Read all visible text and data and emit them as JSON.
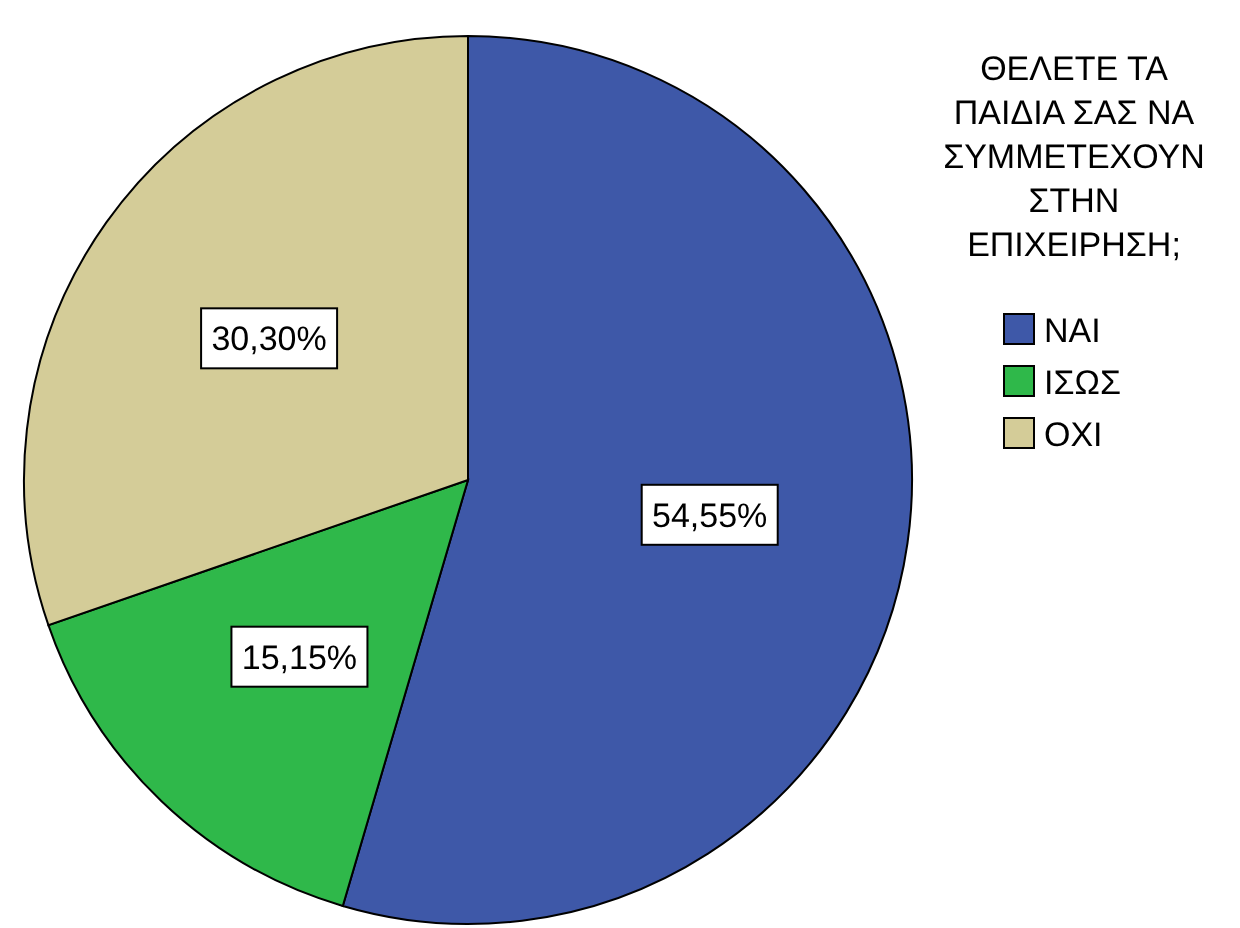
{
  "chart_data": {
    "type": "pie",
    "legend_title": "ΘΕΛΕΤΕ ΤΑ ΠΑΙΔΙΑ ΣΑΣ ΝΑ ΣΥΜΜΕΤΕΧΟΥΝ ΣΤΗΝ ΕΠΙΧΕΙΡΗΣΗ;",
    "categories": [
      "ΝΑΙ",
      "ΙΣΩΣ",
      "ΟΧΙ"
    ],
    "values": [
      54.55,
      15.15,
      30.3
    ],
    "colors": [
      "#3e58a8",
      "#2fb84a",
      "#d4cc98"
    ],
    "value_labels": [
      "54,55%",
      "15,15%",
      "30,30%"
    ],
    "legend": "right"
  }
}
